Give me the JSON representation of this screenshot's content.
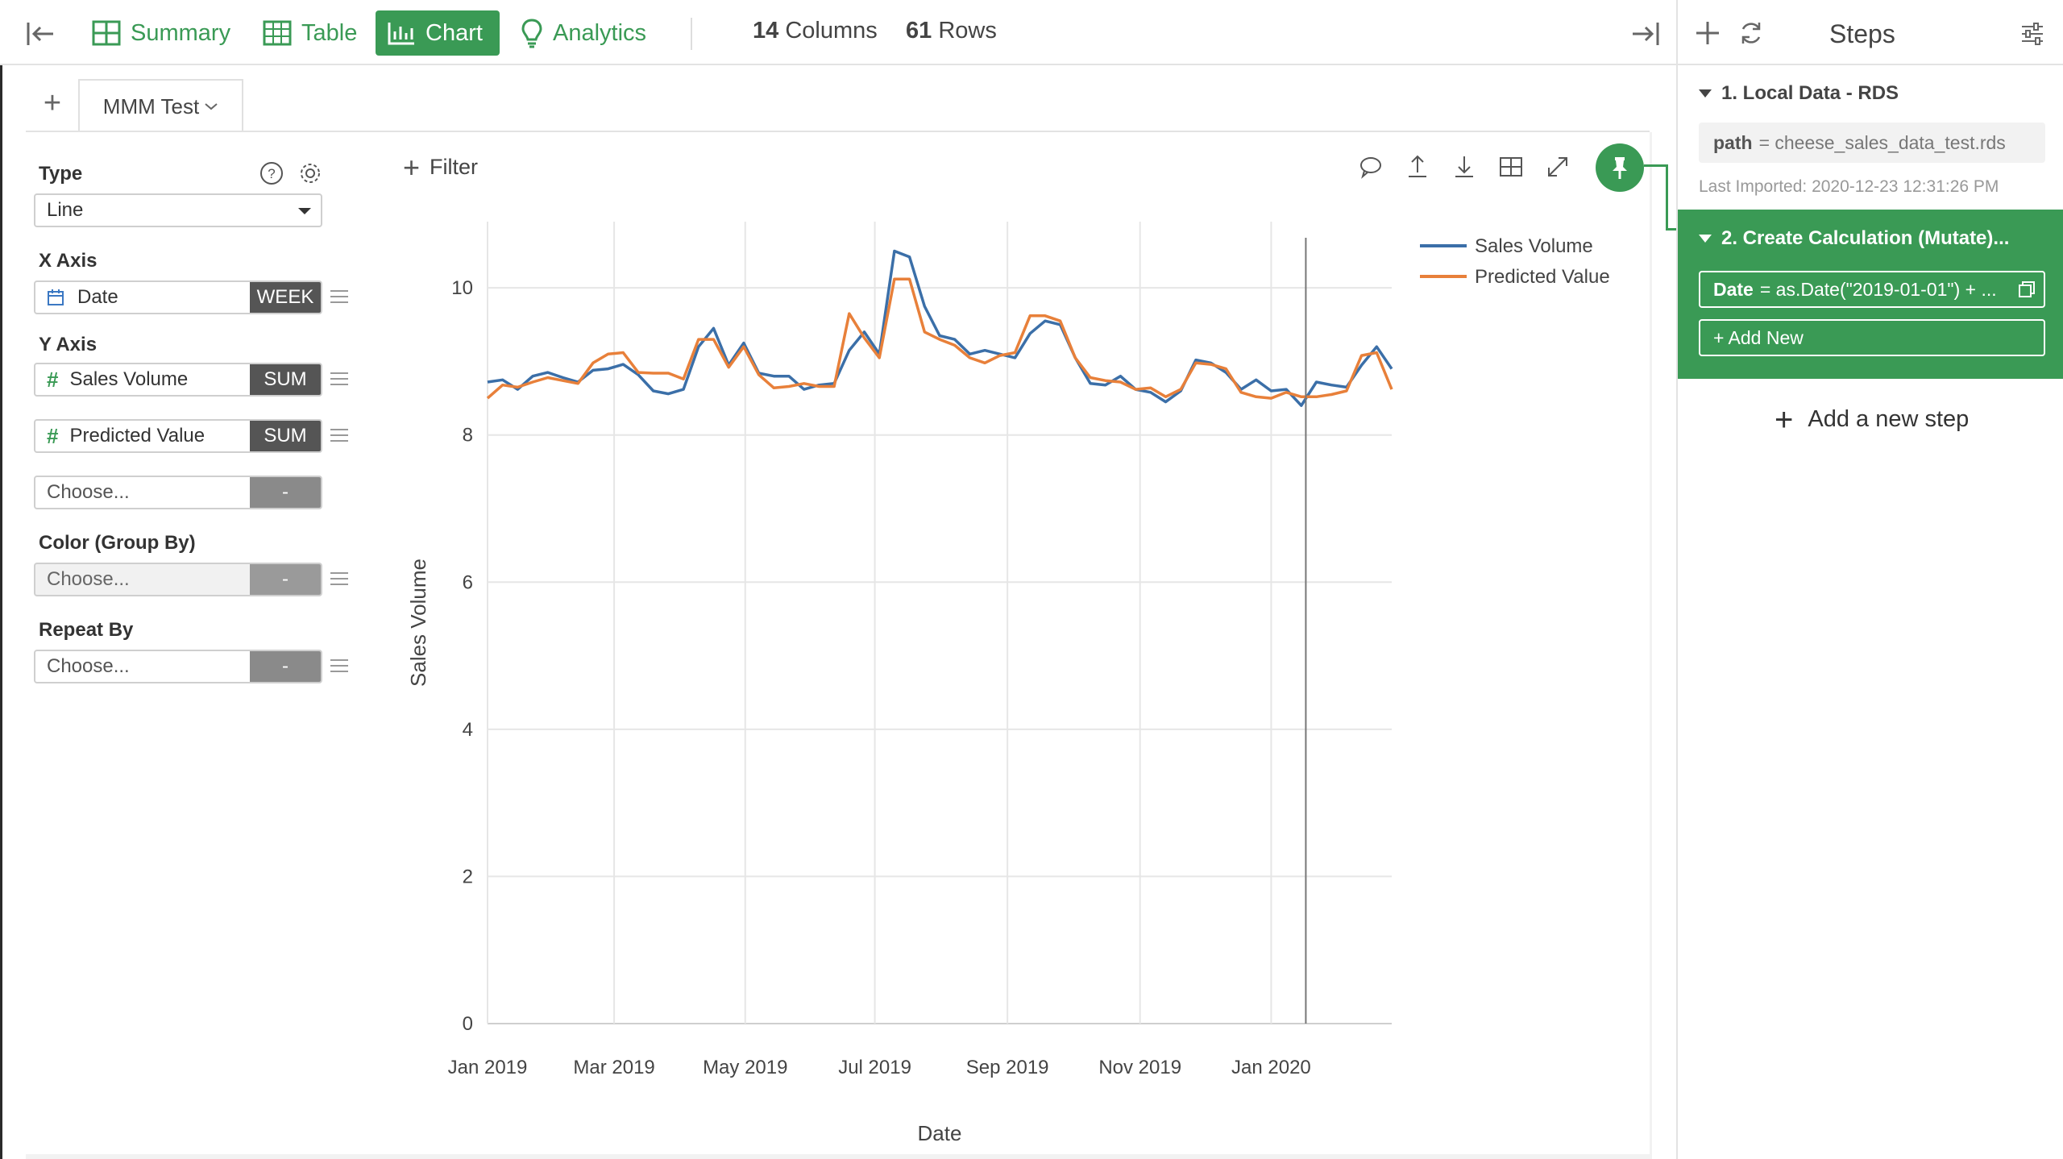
{
  "toolbar": {
    "summary_label": "Summary",
    "table_label": "Table",
    "chart_label": "Chart",
    "analytics_label": "Analytics",
    "columns_count": "14",
    "columns_label": "Columns",
    "rows_count": "61",
    "rows_label": "Rows",
    "accent_color": "#3a9a55"
  },
  "tabs": {
    "active_label": "MMM Test"
  },
  "config": {
    "type_label": "Type",
    "type_value": "Line",
    "x_axis_label": "X Axis",
    "x_field": "Date",
    "x_agg": "WEEK",
    "y_axis_label": "Y Axis",
    "y_fields": [
      {
        "name": "Sales Volume",
        "agg": "SUM"
      },
      {
        "name": "Predicted Value",
        "agg": "SUM"
      }
    ],
    "y_choose": "Choose...",
    "y_choose_tag": "-",
    "color_label": "Color (Group By)",
    "color_choose": "Choose...",
    "color_tag": "-",
    "repeat_label": "Repeat By",
    "repeat_choose": "Choose...",
    "repeat_tag": "-"
  },
  "chart_toolbar": {
    "filter_label": "Filter"
  },
  "chart_data": {
    "type": "line",
    "xlabel": "Date",
    "ylabel": "Sales Volume",
    "ylim": [
      0,
      10.9
    ],
    "y_ticks": [
      "0",
      "2",
      "4",
      "6",
      "8",
      "10"
    ],
    "x_ticks": [
      "Jan 2019",
      "Mar 2019",
      "May 2019",
      "Jul 2019",
      "Sep 2019",
      "Nov 2019",
      "Jan 2020"
    ],
    "grid": true,
    "legend_position": "top-right",
    "series": [
      {
        "name": "Sales Volume",
        "color": "#3b6fa8",
        "values": [
          8.72,
          8.75,
          8.62,
          8.8,
          8.85,
          8.78,
          8.72,
          8.88,
          8.9,
          8.96,
          8.82,
          8.6,
          8.56,
          8.62,
          9.2,
          9.45,
          8.95,
          9.25,
          8.84,
          8.8,
          8.8,
          8.62,
          8.68,
          8.7,
          9.15,
          9.4,
          9.1,
          10.5,
          10.42,
          9.75,
          9.35,
          9.3,
          9.1,
          9.15,
          9.1,
          9.05,
          9.38,
          9.55,
          9.5,
          9.05,
          8.7,
          8.68,
          8.8,
          8.62,
          8.58,
          8.45,
          8.6,
          9.02,
          8.98,
          8.85,
          8.62,
          8.75,
          8.6,
          8.62,
          8.4,
          8.72,
          8.68,
          8.65,
          8.95,
          9.2,
          8.9
        ]
      },
      {
        "name": "Predicted Value",
        "color": "#e8803a",
        "values": [
          8.5,
          8.68,
          8.65,
          8.72,
          8.78,
          8.74,
          8.7,
          8.98,
          9.1,
          9.12,
          8.85,
          8.84,
          8.84,
          8.76,
          9.3,
          9.3,
          8.92,
          9.2,
          8.82,
          8.64,
          8.66,
          8.7,
          8.66,
          8.66,
          9.65,
          9.32,
          9.05,
          10.12,
          10.12,
          9.4,
          9.3,
          9.22,
          9.05,
          8.98,
          9.08,
          9.12,
          9.62,
          9.62,
          9.55,
          9.05,
          8.78,
          8.74,
          8.72,
          8.62,
          8.64,
          8.52,
          8.62,
          8.98,
          8.96,
          8.9,
          8.58,
          8.52,
          8.5,
          8.58,
          8.52,
          8.52,
          8.55,
          8.6,
          9.08,
          9.12,
          8.62
        ]
      }
    ]
  },
  "steps": {
    "title": "Steps",
    "step1_title": "1. Local Data - RDS",
    "step1_param_key": "path",
    "step1_param_value": "= cheese_sales_data_test.rds",
    "step1_meta": "Last Imported: 2020-12-23 12:31:26 PM",
    "step2_title": "2. Create Calculation (Mutate)...",
    "step2_field_key": "Date",
    "step2_field_value": "= as.Date(\"2019-01-01\") + ...",
    "step2_add_label": "+ Add New",
    "add_step_label": "Add a new step"
  }
}
